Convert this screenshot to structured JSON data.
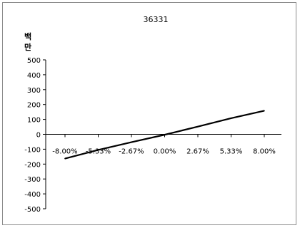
{
  "chart_data": {
    "type": "line",
    "title": "36331",
    "unit_label": [
      "백",
      "만"
    ],
    "xlabel": "",
    "ylabel": "",
    "x": [
      "-8.00%",
      "-5.33%",
      "-2.67%",
      "0.00%",
      "2.67%",
      "5.33%",
      "8.00%"
    ],
    "x_values": [
      -8.0,
      -5.33,
      -2.67,
      0.0,
      2.67,
      5.33,
      8.0
    ],
    "ylim": [
      -500,
      500
    ],
    "y_ticks": [
      500,
      400,
      300,
      200,
      100,
      0,
      -100,
      -200,
      -300,
      -400,
      -500
    ],
    "grid": false,
    "legend": "none",
    "series": [
      {
        "values": [
          -163,
          -105,
          -53,
          -3,
          52,
          108,
          158
        ],
        "color": "#000000"
      }
    ]
  }
}
